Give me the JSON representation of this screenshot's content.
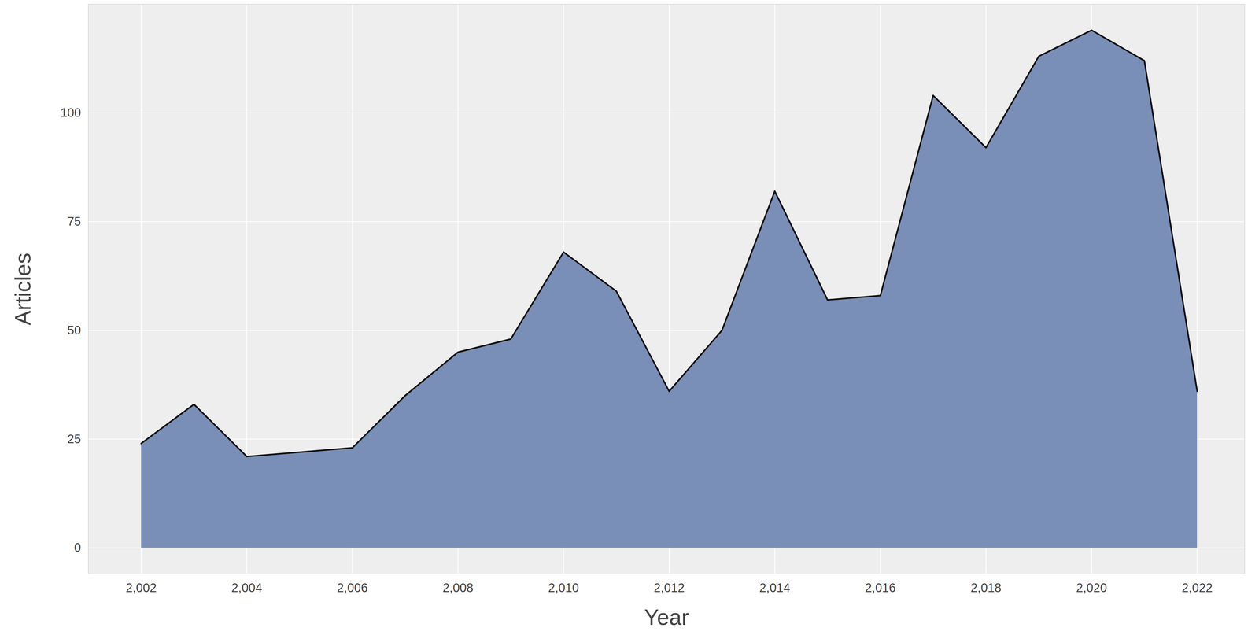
{
  "chart_data": {
    "type": "area",
    "x": [
      2002,
      2003,
      2004,
      2005,
      2006,
      2007,
      2008,
      2009,
      2010,
      2011,
      2012,
      2013,
      2014,
      2015,
      2016,
      2017,
      2018,
      2019,
      2020,
      2021,
      2022
    ],
    "values": [
      24,
      33,
      21,
      22,
      23,
      35,
      45,
      48,
      68,
      59,
      36,
      50,
      82,
      57,
      58,
      104,
      92,
      113,
      119,
      112,
      36
    ],
    "color": "#7a8fb8",
    "x_label": "Year",
    "y_label": "Articles",
    "xlim": [
      2001,
      2022.9
    ],
    "ylim": [
      -6,
      125
    ],
    "xticks": [
      2002,
      2004,
      2006,
      2008,
      2010,
      2012,
      2014,
      2016,
      2018,
      2020,
      2022
    ],
    "yticks": [
      0,
      25,
      50,
      75,
      100
    ],
    "grid": true
  }
}
